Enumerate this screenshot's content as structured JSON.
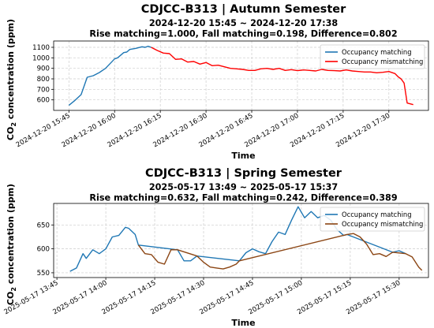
{
  "chart_data": [
    {
      "type": "line",
      "title": "CDJCC-B313 | Autumn Semester",
      "subtitle_lines": [
        "2024-12-20 15:45 ~ 2024-12-20 17:38",
        "Rise matching=1.000, Fall matching=0.198, Difference=0.802"
      ],
      "xlabel": "Time",
      "ylabel": "CO$_2$ concentration (ppm)",
      "ylabel_main": "CO",
      "ylabel_sub": "2",
      "ylabel_rest": " concentration (ppm)",
      "x_start": "2024-12-20 15:45",
      "xlim_minutes": [
        -5,
        118
      ],
      "ylim": [
        500,
        1160
      ],
      "grid": true,
      "legend_position": "top-right",
      "xticks": [
        "2024-12-20 15:45",
        "2024-12-20 16:00",
        "2024-12-20 16:15",
        "2024-12-20 16:30",
        "2024-12-20 16:45",
        "2024-12-20 17:00",
        "2024-12-20 17:15",
        "2024-12-20 17:30"
      ],
      "yticks": [
        600,
        700,
        800,
        900,
        1000,
        1100
      ],
      "series": [
        {
          "name": "Occupancy matching",
          "color": "#1f77b4",
          "x": [
            "2024-12-20 15:45",
            "2024-12-20 15:47",
            "2024-12-20 15:49",
            "2024-12-20 15:51",
            "2024-12-20 15:53",
            "2024-12-20 15:55",
            "2024-12-20 15:57",
            "2024-12-20 15:59",
            "2024-12-20 16:00",
            "2024-12-20 16:01",
            "2024-12-20 16:03",
            "2024-12-20 16:04",
            "2024-12-20 16:05",
            "2024-12-20 16:07",
            "2024-12-20 16:09",
            "2024-12-20 16:10",
            "2024-12-20 16:11",
            "2024-12-20 16:12"
          ],
          "y": [
            548,
            595,
            650,
            815,
            830,
            860,
            900,
            960,
            990,
            1000,
            1050,
            1055,
            1080,
            1090,
            1105,
            1100,
            1110,
            1100
          ]
        },
        {
          "name": "Occupancy mismatching",
          "color": "#ff0000",
          "x": [
            "2024-12-20 16:12",
            "2024-12-20 16:14",
            "2024-12-20 16:16",
            "2024-12-20 16:18",
            "2024-12-20 16:20",
            "2024-12-20 16:22",
            "2024-12-20 16:24",
            "2024-12-20 16:26",
            "2024-12-20 16:28",
            "2024-12-20 16:30",
            "2024-12-20 16:32",
            "2024-12-20 16:34",
            "2024-12-20 16:36",
            "2024-12-20 16:38",
            "2024-12-20 16:40",
            "2024-12-20 16:42",
            "2024-12-20 16:44",
            "2024-12-20 16:46",
            "2024-12-20 16:48",
            "2024-12-20 16:50",
            "2024-12-20 16:52",
            "2024-12-20 16:54",
            "2024-12-20 16:56",
            "2024-12-20 16:58",
            "2024-12-20 17:00",
            "2024-12-20 17:02",
            "2024-12-20 17:04",
            "2024-12-20 17:06",
            "2024-12-20 17:08",
            "2024-12-20 17:10",
            "2024-12-20 17:12",
            "2024-12-20 17:14",
            "2024-12-20 17:16",
            "2024-12-20 17:18",
            "2024-12-20 17:20",
            "2024-12-20 17:22",
            "2024-12-20 17:24",
            "2024-12-20 17:26",
            "2024-12-20 17:28",
            "2024-12-20 17:30",
            "2024-12-20 17:32",
            "2024-12-20 17:33",
            "2024-12-20 17:34",
            "2024-12-20 17:35",
            "2024-12-20 17:36",
            "2024-12-20 17:38"
          ],
          "y": [
            1100,
            1070,
            1045,
            1040,
            985,
            990,
            960,
            965,
            940,
            955,
            925,
            930,
            915,
            900,
            895,
            890,
            880,
            880,
            895,
            900,
            890,
            900,
            880,
            888,
            878,
            885,
            880,
            875,
            890,
            880,
            878,
            875,
            885,
            875,
            870,
            865,
            865,
            858,
            862,
            870,
            850,
            820,
            800,
            760,
            570,
            555
          ]
        }
      ]
    },
    {
      "type": "line",
      "title": "CDJCC-B313 | Spring Semester",
      "subtitle_lines": [
        "2025-05-17 13:49 ~ 2025-05-17 15:37",
        "Rise matching=0.632, Fall matching=0.242, Difference=0.389"
      ],
      "xlabel": "Time",
      "ylabel": "CO$_2$ concentration (ppm)",
      "ylabel_main": "CO",
      "ylabel_sub": "2",
      "ylabel_rest": " concentration (ppm)",
      "x_start": "2025-05-17 13:45",
      "xlim_minutes": [
        -1,
        114
      ],
      "ylim": [
        540,
        695
      ],
      "grid": true,
      "legend_position": "top-right",
      "xticks": [
        "2025-05-17 13:45",
        "2025-05-17 14:00",
        "2025-05-17 14:15",
        "2025-05-17 14:30",
        "2025-05-17 14:45",
        "2025-05-17 15:00",
        "2025-05-17 15:15",
        "2025-05-17 15:30"
      ],
      "yticks": [
        550,
        600,
        650
      ],
      "series": [
        {
          "name": "Occupancy matching",
          "color": "#1f77b4",
          "x": [
            "2025-05-17 13:49",
            "2025-05-17 13:51",
            "2025-05-17 13:53",
            "2025-05-17 13:54",
            "2025-05-17 13:56",
            "2025-05-17 13:58",
            "2025-05-17 14:00",
            "2025-05-17 14:02",
            "2025-05-17 14:04",
            "2025-05-17 14:06",
            "2025-05-17 14:07",
            "2025-05-17 14:09",
            "2025-05-17 14:10",
            "2025-05-17 14:22",
            "2025-05-17 14:24",
            "2025-05-17 14:26",
            "2025-05-17 14:28",
            "2025-05-17 14:41",
            "2025-05-17 14:43",
            "2025-05-17 14:45",
            "2025-05-17 14:47",
            "2025-05-17 14:49",
            "2025-05-17 14:51",
            "2025-05-17 14:53",
            "2025-05-17 14:55",
            "2025-05-17 14:57",
            "2025-05-17 14:59",
            "2025-05-17 15:01",
            "2025-05-17 15:03",
            "2025-05-17 15:05",
            "2025-05-17 15:07",
            "2025-05-17 15:09",
            "2025-05-17 15:11",
            "2025-05-17 15:13",
            "2025-05-17 15:14",
            "2025-05-17 15:28",
            "2025-05-17 15:30",
            "2025-05-17 15:32"
          ],
          "y": [
            553,
            560,
            590,
            580,
            598,
            590,
            600,
            625,
            628,
            645,
            643,
            630,
            608,
            598,
            575,
            575,
            585,
            575,
            592,
            600,
            594,
            590,
            615,
            635,
            630,
            660,
            688,
            665,
            678,
            665,
            670,
            660,
            640,
            628,
            630,
            593,
            596,
            590
          ]
        },
        {
          "name": "Occupancy mismatching",
          "color": "#8b4513",
          "x": [
            "2025-05-17 14:10",
            "2025-05-17 14:12",
            "2025-05-17 14:14",
            "2025-05-17 14:16",
            "2025-05-17 14:18",
            "2025-05-17 14:20",
            "2025-05-17 14:22",
            "2025-05-17 14:28",
            "2025-05-17 14:30",
            "2025-05-17 14:32",
            "2025-05-17 14:34",
            "2025-05-17 14:36",
            "2025-05-17 14:38",
            "2025-05-17 14:40",
            "2025-05-17 14:41",
            "2025-05-17 15:14",
            "2025-05-17 15:16",
            "2025-05-17 15:18",
            "2025-05-17 15:20",
            "2025-05-17 15:22",
            "2025-05-17 15:24",
            "2025-05-17 15:26",
            "2025-05-17 15:28",
            "2025-05-17 15:32",
            "2025-05-17 15:34",
            "2025-05-17 15:36",
            "2025-05-17 15:37"
          ],
          "y": [
            608,
            590,
            588,
            572,
            568,
            598,
            598,
            585,
            572,
            562,
            560,
            558,
            562,
            568,
            575,
            630,
            632,
            625,
            610,
            588,
            590,
            584,
            593,
            590,
            583,
            562,
            555
          ]
        }
      ]
    }
  ]
}
